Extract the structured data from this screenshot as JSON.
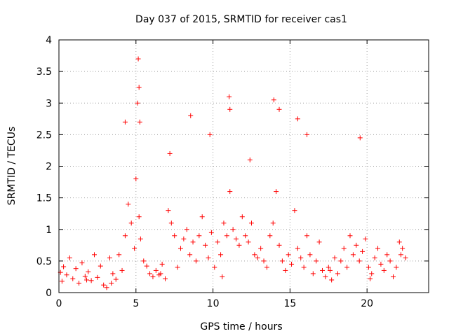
{
  "chart_data": {
    "type": "scatter",
    "title": "Day 037 of 2015, SRMTID for receiver cas1",
    "xlabel": "GPS time / hours",
    "ylabel": "SRMTID / TECUs",
    "xlim": [
      0,
      24
    ],
    "ylim": [
      0,
      4
    ],
    "xticks": [
      "0",
      "5",
      "10",
      "15",
      "20"
    ],
    "xtick_values": [
      0,
      5,
      10,
      15,
      20
    ],
    "yticks": [
      "0",
      "0.5",
      "1",
      "1.5",
      "2",
      "2.5",
      "3",
      "3.5",
      "4"
    ],
    "ytick_values": [
      0,
      0.5,
      1,
      1.5,
      2,
      2.5,
      3,
      3.5,
      4
    ],
    "grid": true,
    "marker": "+",
    "series": [
      {
        "name": "SRMTID",
        "color": "#ff0000",
        "x": [
          0.1,
          0.3,
          0.5,
          0.7,
          0.9,
          1.1,
          1.3,
          1.5,
          1.7,
          1.9,
          2.1,
          2.3,
          2.5,
          2.7,
          2.9,
          3.1,
          3.3,
          3.5,
          3.7,
          3.9,
          4.1,
          4.3,
          4.5,
          4.7,
          4.9,
          5.0,
          5.1,
          5.2,
          5.3,
          5.5,
          5.7,
          5.9,
          6.1,
          6.3,
          6.5,
          6.7,
          6.9,
          7.1,
          7.3,
          7.5,
          7.7,
          7.9,
          8.1,
          8.3,
          8.5,
          8.7,
          8.9,
          9.1,
          9.3,
          9.5,
          9.7,
          9.9,
          10.1,
          10.3,
          10.5,
          10.7,
          10.9,
          11.1,
          11.3,
          11.5,
          11.7,
          11.9,
          12.1,
          12.3,
          12.5,
          12.7,
          12.9,
          13.1,
          13.3,
          13.5,
          13.7,
          13.9,
          14.1,
          14.3,
          14.5,
          14.7,
          14.9,
          15.1,
          15.3,
          15.5,
          15.7,
          15.9,
          16.1,
          16.3,
          16.5,
          16.7,
          16.9,
          17.1,
          17.3,
          17.5,
          17.7,
          17.9,
          18.1,
          18.3,
          18.5,
          18.7,
          18.9,
          19.1,
          19.3,
          19.5,
          19.7,
          19.9,
          20.1,
          20.3,
          20.5,
          20.7,
          20.9,
          21.1,
          21.3,
          21.5,
          21.7,
          21.9,
          22.1,
          22.3,
          22.5,
          5.15,
          5.2,
          5.25,
          11.05,
          11.1,
          13.95,
          14.3,
          7.2,
          8.55,
          4.3,
          15.5,
          16.1,
          19.55,
          12.4,
          9.8,
          0.2,
          1.8,
          3.4,
          6.6,
          10.6,
          17.6,
          20.2,
          22.2
        ],
        "y": [
          0.32,
          0.41,
          0.28,
          0.55,
          0.22,
          0.38,
          0.15,
          0.47,
          0.26,
          0.33,
          0.19,
          0.6,
          0.24,
          0.42,
          0.12,
          0.08,
          0.55,
          0.3,
          0.21,
          0.6,
          0.35,
          0.9,
          1.4,
          1.1,
          0.7,
          1.8,
          3.0,
          1.2,
          0.85,
          0.5,
          0.42,
          0.3,
          0.25,
          0.35,
          0.28,
          0.45,
          0.22,
          1.3,
          1.1,
          0.9,
          0.4,
          0.7,
          0.85,
          1.0,
          0.6,
          0.8,
          0.5,
          0.9,
          1.2,
          0.75,
          0.55,
          0.95,
          0.4,
          0.8,
          0.6,
          1.1,
          0.9,
          1.6,
          1.0,
          0.85,
          0.75,
          1.2,
          0.9,
          0.8,
          1.1,
          0.6,
          0.55,
          0.7,
          0.5,
          0.4,
          0.9,
          1.1,
          1.6,
          0.75,
          0.5,
          0.35,
          0.6,
          0.45,
          1.3,
          0.7,
          0.55,
          0.4,
          0.9,
          0.6,
          0.3,
          0.5,
          0.8,
          0.35,
          0.25,
          0.4,
          0.2,
          0.55,
          0.3,
          0.5,
          0.7,
          0.4,
          0.9,
          0.6,
          0.75,
          0.5,
          0.65,
          0.85,
          0.4,
          0.3,
          0.55,
          0.7,
          0.45,
          0.35,
          0.6,
          0.5,
          0.25,
          0.4,
          0.8,
          0.7,
          0.55,
          3.7,
          3.25,
          2.7,
          3.1,
          2.9,
          3.05,
          2.9,
          2.2,
          2.8,
          2.7,
          2.75,
          2.5,
          2.45,
          2.1,
          2.5,
          0.18,
          0.2,
          0.15,
          0.3,
          0.25,
          0.35,
          0.22,
          0.6
        ]
      }
    ]
  }
}
